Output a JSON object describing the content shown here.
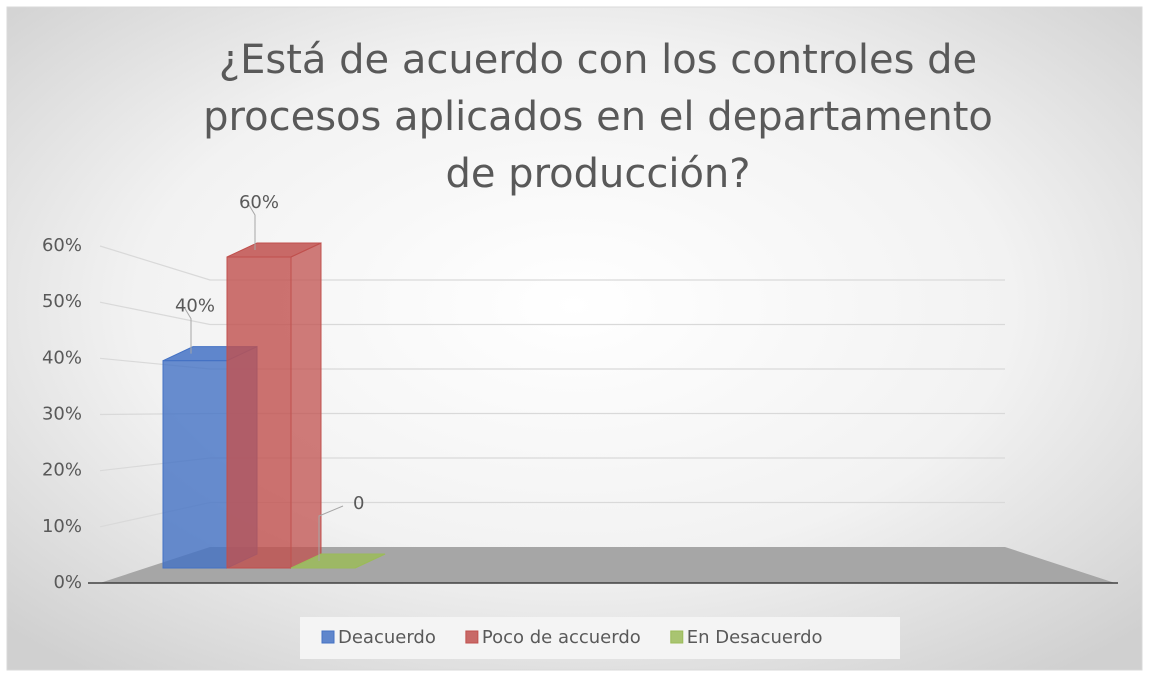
{
  "chart_data": {
    "type": "bar3d",
    "title": "¿Está de acuerdo con los controles de procesos aplicados en el departamento de producción?",
    "categories": [
      null
    ],
    "series": [
      {
        "name": "Deacuerdo",
        "color": "#4472c4",
        "values": [
          40
        ],
        "value_labels": [
          "40%"
        ]
      },
      {
        "name": "Poco de accuerdo",
        "color": "#c0504d",
        "values": [
          60
        ],
        "value_labels": [
          "60%"
        ]
      },
      {
        "name": "En Desacuerdo",
        "color": "#9bbb59",
        "values": [
          0
        ]
      }
    ],
    "ylim": [
      0,
      60
    ],
    "yticks": [
      {
        "value": 0,
        "label": "0%"
      },
      {
        "value": 10,
        "label": "10%"
      },
      {
        "value": 20,
        "label": "20%"
      },
      {
        "value": 30,
        "label": "30%"
      },
      {
        "value": 40,
        "label": "40%"
      },
      {
        "value": 50,
        "label": "50%"
      },
      {
        "value": 60,
        "label": "60%"
      }
    ],
    "grid": true,
    "legend": "bottom"
  }
}
